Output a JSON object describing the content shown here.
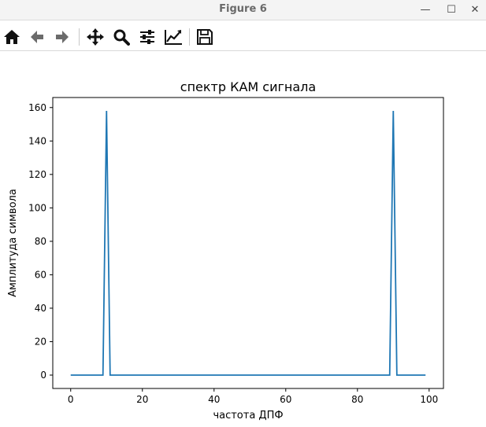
{
  "window": {
    "title": "Figure 6",
    "minimize_glyph": "—",
    "maximize_glyph": "☐",
    "close_glyph": "✕"
  },
  "toolbar": {
    "items": [
      {
        "name": "home-icon"
      },
      {
        "name": "back-arrow-icon"
      },
      {
        "name": "forward-arrow-icon"
      },
      {
        "name": "pan-icon"
      },
      {
        "name": "zoom-icon"
      },
      {
        "name": "configure-subplots-icon"
      },
      {
        "name": "edit-axis-icon"
      },
      {
        "name": "save-icon"
      }
    ]
  },
  "chart_data": {
    "type": "line",
    "title": "спектр КАМ сигнала",
    "xlabel": "частота ДПФ",
    "ylabel": "Амплитуда символа",
    "xlim": [
      -5,
      104
    ],
    "ylim": [
      -8,
      166
    ],
    "xticks": [
      0,
      20,
      40,
      60,
      80,
      100
    ],
    "yticks": [
      0,
      20,
      40,
      60,
      80,
      100,
      120,
      140,
      160
    ],
    "grid": false,
    "line_color": "#1f77b4",
    "series": [
      {
        "x": [
          0,
          9,
          10,
          11,
          89,
          90,
          91,
          99
        ],
        "values": [
          0,
          0,
          158,
          0,
          0,
          158,
          0,
          0
        ]
      }
    ]
  }
}
